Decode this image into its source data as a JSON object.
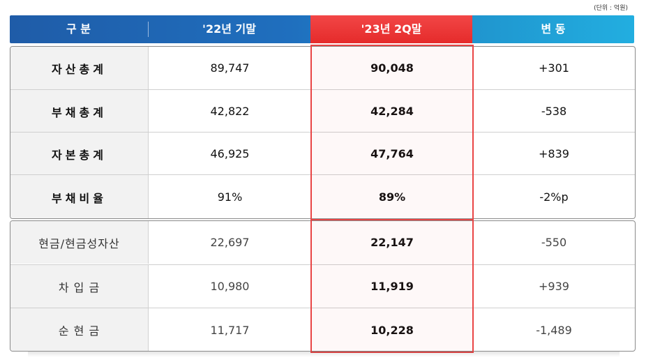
{
  "unit": "(단위 : 억원)",
  "headers": {
    "category": "구  분",
    "prev": "'22년 기말",
    "current": "'23년 2Q말",
    "change": "변  동"
  },
  "group1": [
    {
      "label": "자산총계",
      "prev": "89,747",
      "current": "90,048",
      "change": "+301"
    },
    {
      "label": "부채총계",
      "prev": "42,822",
      "current": "42,284",
      "change": "-538"
    },
    {
      "label": "자본총계",
      "prev": "46,925",
      "current": "47,764",
      "change": "+839"
    },
    {
      "label": "부채비율",
      "prev": "91%",
      "current": "89%",
      "change": "-2%p"
    }
  ],
  "group2": [
    {
      "label": "현금/현금성자산",
      "prev": "22,697",
      "current": "22,147",
      "change": "-550"
    },
    {
      "label": "차 입 금",
      "prev": "10,980",
      "current": "11,919",
      "change": "+939"
    },
    {
      "label": "순 현 금",
      "prev": "11,717",
      "current": "10,228",
      "change": "-1,489"
    }
  ],
  "colors": {
    "header_blue": "#1f5ca8",
    "header_cyan": "#22aee0",
    "highlight_red": "#e94545"
  }
}
